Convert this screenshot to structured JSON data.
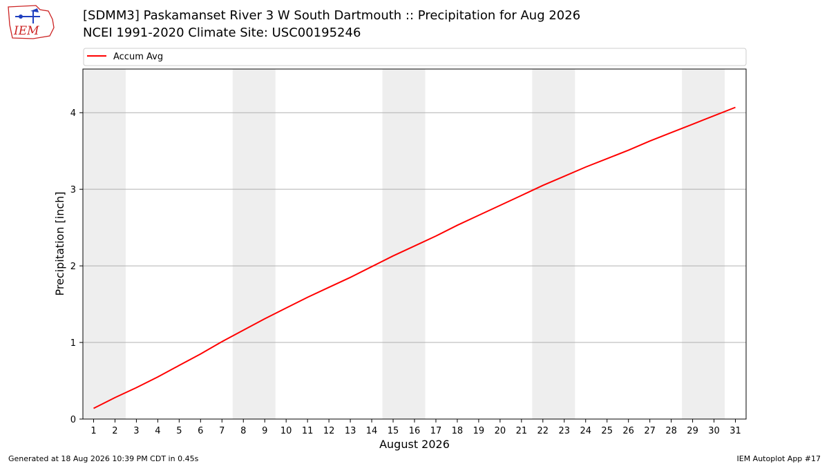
{
  "header": {
    "title_line1": "[SDMM3] Paskamanset River 3 W South Dartmouth :: Precipitation for Aug 2026",
    "title_line2": "NCEI 1991-2020 Climate Site: USC00195246",
    "logo_text": "IEM"
  },
  "footer": {
    "generated": "Generated at 18 Aug 2026 10:39 PM CDT in 0.45s",
    "app": "IEM Autoplot App #17"
  },
  "colors": {
    "line": "#ff0000",
    "weekend": "#eeeeee",
    "grid": "#b0b0b0",
    "logo": "#cc2222"
  },
  "chart_data": {
    "type": "line",
    "xlabel": "August 2026",
    "ylabel": "Precipitation [inch]",
    "xlim": [
      0.5,
      31.5
    ],
    "ylim": [
      0,
      4.57
    ],
    "yticks": [
      0,
      1,
      2,
      3,
      4
    ],
    "categories": [
      "1",
      "2",
      "3",
      "4",
      "5",
      "6",
      "7",
      "8",
      "9",
      "10",
      "11",
      "12",
      "13",
      "14",
      "15",
      "16",
      "17",
      "18",
      "19",
      "20",
      "21",
      "22",
      "23",
      "24",
      "25",
      "26",
      "27",
      "28",
      "29",
      "30",
      "31"
    ],
    "grid": "horizontal",
    "legend_position": "top",
    "weekend_bands": [
      [
        0.5,
        2.5
      ],
      [
        7.5,
        9.5
      ],
      [
        14.5,
        16.5
      ],
      [
        21.5,
        23.5
      ],
      [
        28.5,
        30.5
      ]
    ],
    "series": [
      {
        "name": "Accum Avg",
        "x": [
          1,
          2,
          3,
          4,
          5,
          6,
          7,
          8,
          9,
          10,
          11,
          12,
          13,
          14,
          15,
          16,
          17,
          18,
          19,
          20,
          21,
          22,
          23,
          24,
          25,
          26,
          27,
          28,
          29,
          30,
          31
        ],
        "values": [
          0.14,
          0.28,
          0.41,
          0.55,
          0.7,
          0.85,
          1.01,
          1.16,
          1.31,
          1.45,
          1.59,
          1.72,
          1.85,
          1.99,
          2.13,
          2.26,
          2.39,
          2.53,
          2.66,
          2.79,
          2.92,
          3.05,
          3.17,
          3.29,
          3.4,
          3.51,
          3.63,
          3.74,
          3.85,
          3.96,
          4.07
        ]
      }
    ]
  }
}
